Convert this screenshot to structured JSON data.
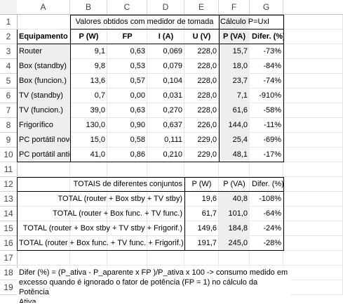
{
  "columns": [
    "A",
    "B",
    "C",
    "D",
    "E",
    "F",
    "G"
  ],
  "rows": [
    "1",
    "2",
    "3",
    "4",
    "5",
    "6",
    "7",
    "8",
    "9",
    "10",
    "11",
    "12",
    "13",
    "14",
    "15",
    "16",
    "17",
    "18",
    "19"
  ],
  "header1": {
    "measured": "Valores obtidos com medidor de tomada",
    "calc": "Cálculo P=UxI"
  },
  "header2": [
    "Equipamento",
    "P (W)",
    "FP",
    "I (A)",
    "U (V)",
    "P (VA)",
    "Difer. (%)"
  ],
  "table1": [
    [
      "Router",
      "9,1",
      "0,63",
      "0,069",
      "228,0",
      "15,7",
      "-73%"
    ],
    [
      "Box (standby)",
      "9,8",
      "0,53",
      "0,079",
      "228,0",
      "18,0",
      "-84%"
    ],
    [
      "Box (funcion.)",
      "13,6",
      "0,57",
      "0,104",
      "228,0",
      "23,7",
      "-74%"
    ],
    [
      "TV (standby)",
      "0,7",
      "0,00",
      "0,031",
      "228,0",
      "7,1",
      "-910%"
    ],
    [
      "TV (funcion.)",
      "39,0",
      "0,63",
      "0,270",
      "228,0",
      "61,6",
      "-58%"
    ],
    [
      "Frigorífico",
      "130,0",
      "0,90",
      "0,637",
      "226,0",
      "144,0",
      "-11%"
    ],
    [
      "PC portátil novo",
      "15,0",
      "0,58",
      "0,111",
      "229,0",
      "25,4",
      "-69%"
    ],
    [
      "PC portátil antigo",
      "41,0",
      "0,86",
      "0,210",
      "229,0",
      "48,1",
      "-17%"
    ]
  ],
  "totals_header": [
    "TOTAIS de diferentes conjuntos",
    "P (W)",
    "P (VA)",
    "Difer. (%)"
  ],
  "totals": [
    [
      "TOTAL (router + Box stby + TV stby)",
      "19,6",
      "40,8",
      "-108%"
    ],
    [
      "TOTAL (router + Box func. + TV func.)",
      "61,7",
      "101,0",
      "-64%"
    ],
    [
      "TOTAL (router + Box stby + TV stby + Frigorif.)",
      "149,6",
      "184,8",
      "-24%"
    ],
    [
      "TOTAL (router + Box func. + TV func. + Frigorif.)",
      "191,7",
      "245,0",
      "-28%"
    ]
  ],
  "note_line1": "Difer (%) = (P_ativa - P_aparente x FP )/P_ativa x 100  -> consumo medido em",
  "note_line2": "excesso quando é ignorado o fator de potência (FP = 1) no cálculo da Potência",
  "note_line3": "Ativa"
}
